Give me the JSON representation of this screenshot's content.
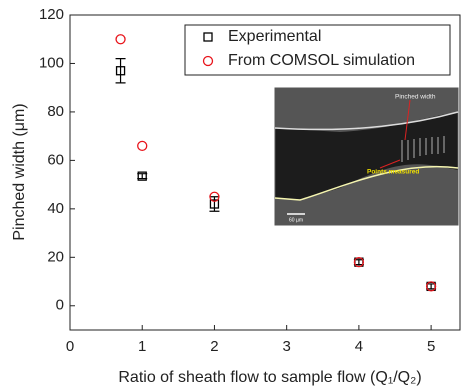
{
  "chart_data": {
    "type": "scatter",
    "x_label": "Ratio of sheath flow to sample flow (Q₁/Q₂)",
    "y_label": "Pinched width (μm)",
    "xlim": [
      0,
      5.4
    ],
    "xticks": [
      0,
      1,
      2,
      3,
      4,
      5
    ],
    "ylim": [
      -10,
      120
    ],
    "yticks": [
      0,
      20,
      40,
      60,
      80,
      100,
      120
    ],
    "legend": "upper right",
    "series": [
      {
        "name": "Experimental",
        "color": "#000000",
        "marker": "square",
        "x": [
          0.7,
          1,
          2,
          4,
          5
        ],
        "values": [
          97,
          53.5,
          42,
          18,
          8
        ],
        "errors": [
          5,
          1,
          3,
          1,
          1
        ]
      },
      {
        "name": "From COMSOL simulation",
        "color": "#e8141b",
        "marker": "circle",
        "x": [
          0.7,
          1,
          2,
          4,
          5
        ],
        "values": [
          110,
          66,
          45,
          18,
          8
        ]
      }
    ],
    "annotations": [
      "Pinched width",
      "Points measured",
      "60 µm"
    ]
  }
}
